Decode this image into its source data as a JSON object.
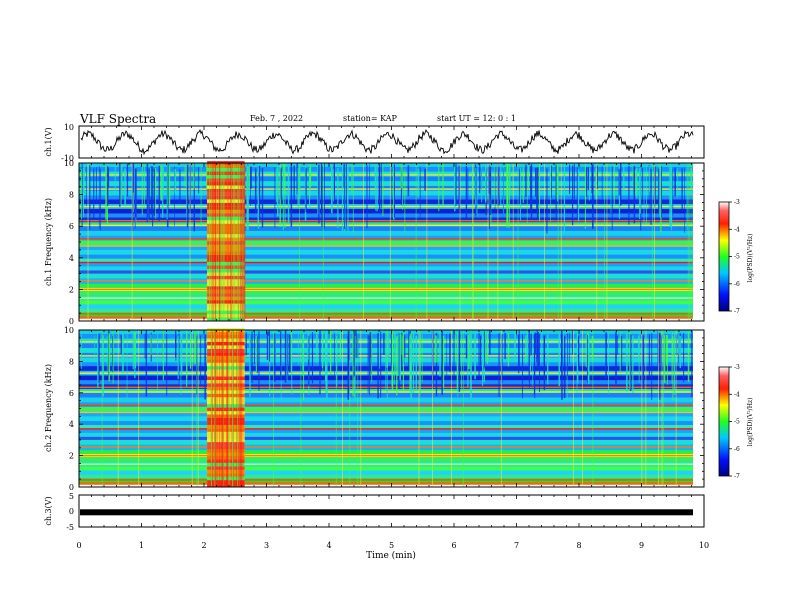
{
  "header": {
    "title": "VLF Spectra",
    "date": "Feb. 7 , 2022",
    "station": "station= KAP",
    "start": "start  UT =   12: 0   : 1"
  },
  "colors": {
    "spectro_colormap": [
      "#08088a",
      "#1030e0",
      "#1aa0ff",
      "#19e8d8",
      "#28f03c",
      "#f0f030",
      "#ff8000",
      "#ff1010",
      "#ffffff"
    ],
    "trace": "#000000",
    "axes": "#000000"
  },
  "chart_data": [
    {
      "type": "line",
      "panel": "ch1-waveform",
      "ylabel": "ch.1(V)",
      "ylim": [
        -10,
        10
      ],
      "yticks": [
        "10",
        "-10"
      ],
      "xlim": [
        0,
        10
      ],
      "description_values": {
        "oscillation_period_min": 0.6,
        "amplitude_v": 5
      }
    },
    {
      "type": "heatmap",
      "panel": "ch1-spectrogram",
      "ylabel": "ch.1 Frequency (kHz)",
      "ylim": [
        0,
        10
      ],
      "yticks": [
        "0",
        "2",
        "4",
        "6",
        "8",
        "10"
      ],
      "xlim": [
        0,
        10
      ],
      "burst_min": [
        2.05,
        2.65
      ],
      "colorbar": {
        "label": "log(PSD)(V²/Hz)",
        "range": [
          -7,
          -3
        ],
        "ticks": [
          "-3",
          "-4",
          "-5",
          "-6",
          "-7"
        ]
      }
    },
    {
      "type": "heatmap",
      "panel": "ch2-spectrogram",
      "ylabel": "ch.2 Frequency (kHz)",
      "ylim": [
        0,
        10
      ],
      "yticks": [
        "0",
        "2",
        "4",
        "6",
        "8",
        "10"
      ],
      "xlim": [
        0,
        10
      ],
      "burst_min": [
        2.05,
        2.65
      ],
      "colorbar": {
        "label": "log(PSD)(V²/Hz)",
        "range": [
          -7,
          -3
        ],
        "ticks": [
          "-3",
          "-4",
          "-5",
          "-6",
          "-7"
        ]
      }
    },
    {
      "type": "line",
      "panel": "ch3-waveform",
      "ylabel": "ch.3(V)",
      "ylim": [
        -5,
        5
      ],
      "yticks": [
        "5",
        "0",
        "-5"
      ],
      "xlim": [
        0,
        10
      ],
      "xlabel": "Time (min)",
      "xticks": [
        "0",
        "1",
        "2",
        "3",
        "4",
        "5",
        "6",
        "7",
        "8",
        "9",
        "10"
      ],
      "level_v": -0.4
    }
  ]
}
